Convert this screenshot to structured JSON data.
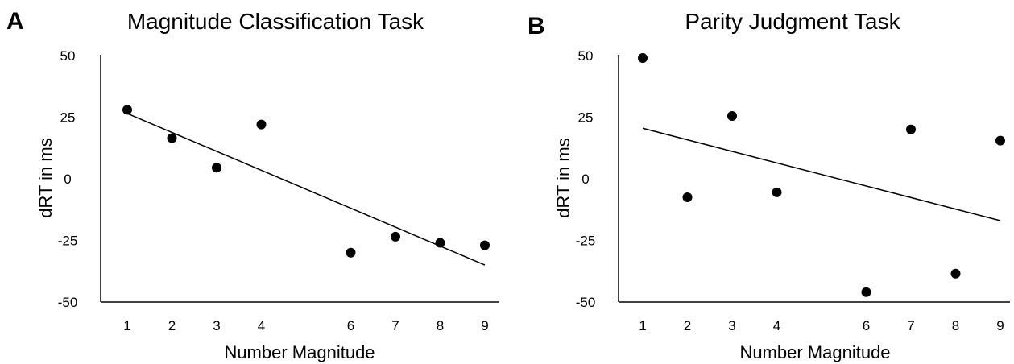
{
  "chart_data": [
    {
      "type": "scatter",
      "panel": "A",
      "title": "Magnitude Classification Task",
      "xlabel": "Number Magnitude",
      "ylabel": "dRT in ms",
      "xticks": [
        1,
        2,
        3,
        4,
        6,
        7,
        8,
        9
      ],
      "yticks": [
        50,
        25,
        0,
        -25,
        -50
      ],
      "ylim": [
        -50,
        50
      ],
      "grid": false,
      "points": [
        {
          "x": 1,
          "y": 28
        },
        {
          "x": 2,
          "y": 16.5
        },
        {
          "x": 3,
          "y": 4.5
        },
        {
          "x": 4,
          "y": 22
        },
        {
          "x": 6,
          "y": -30
        },
        {
          "x": 7,
          "y": -23.5
        },
        {
          "x": 8,
          "y": -26
        },
        {
          "x": 9,
          "y": -27
        }
      ],
      "trendline": {
        "x": [
          1,
          9
        ],
        "y": [
          26.5,
          -35
        ]
      }
    },
    {
      "type": "scatter",
      "panel": "B",
      "title": "Parity Judgment Task",
      "xlabel": "Number Magnitude",
      "ylabel": "dRT in ms",
      "xticks": [
        1,
        2,
        3,
        4,
        6,
        7,
        8,
        9
      ],
      "yticks": [
        50,
        25,
        0,
        -25,
        -50
      ],
      "ylim": [
        -50,
        50
      ],
      "grid": false,
      "points": [
        {
          "x": 1,
          "y": 49
        },
        {
          "x": 2,
          "y": -7.5
        },
        {
          "x": 3,
          "y": 25.5
        },
        {
          "x": 4,
          "y": -5.5
        },
        {
          "x": 6,
          "y": -46
        },
        {
          "x": 7,
          "y": 20
        },
        {
          "x": 8,
          "y": -38.5
        },
        {
          "x": 9,
          "y": 15.5
        }
      ],
      "trendline": {
        "x": [
          1,
          9
        ],
        "y": [
          20.5,
          -17
        ]
      }
    }
  ],
  "colors": {
    "points": "#000000",
    "line": "#000000",
    "axes": "#000000"
  }
}
